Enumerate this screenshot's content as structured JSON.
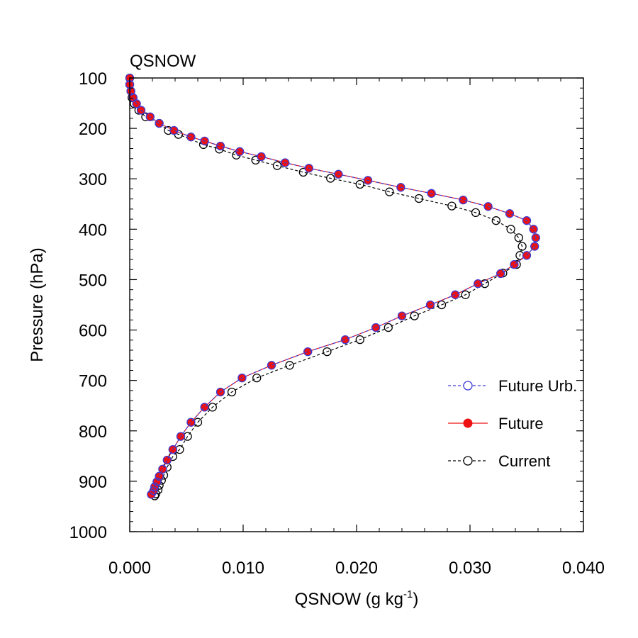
{
  "chart_data": {
    "type": "line",
    "title": "QSNOW",
    "xlabel": "QSNOW (g kg",
    "xlabel_sup": "-1",
    "xlabel_end": ")",
    "ylabel": "Pressure (hPa)",
    "xlim": [
      0,
      0.04
    ],
    "ylim": [
      1000,
      100
    ],
    "x_ticks": [
      0,
      0.01,
      0.02,
      0.03,
      0.04
    ],
    "x_tick_labels": [
      "0.000",
      "0.010",
      "0.020",
      "0.030",
      "0.040"
    ],
    "y_ticks": [
      100,
      200,
      300,
      400,
      500,
      600,
      700,
      800,
      900,
      1000
    ],
    "y_tick_labels": [
      "100",
      "200",
      "300",
      "400",
      "500",
      "600",
      "700",
      "800",
      "900",
      "1000"
    ],
    "legend": {
      "position": "right-middle"
    },
    "series": [
      {
        "name": "Future Urb.",
        "color": "#3b3bd6",
        "line": "dashed",
        "marker": "open-circle",
        "points": [
          [
            0.0,
            100
          ],
          [
            0.0,
            113
          ],
          [
            0.0001,
            126
          ],
          [
            0.0003,
            139
          ],
          [
            0.0006,
            151
          ],
          [
            0.001,
            164
          ],
          [
            0.0018,
            177
          ],
          [
            0.0026,
            190
          ],
          [
            0.0039,
            204
          ],
          [
            0.0054,
            217
          ],
          [
            0.0066,
            225
          ],
          [
            0.008,
            235
          ],
          [
            0.0097,
            246
          ],
          [
            0.0116,
            256
          ],
          [
            0.0137,
            268
          ],
          [
            0.0158,
            279
          ],
          [
            0.0184,
            291
          ],
          [
            0.021,
            303
          ],
          [
            0.0239,
            317
          ],
          [
            0.0266,
            329
          ],
          [
            0.0294,
            342
          ],
          [
            0.0316,
            355
          ],
          [
            0.0335,
            369
          ],
          [
            0.035,
            383
          ],
          [
            0.0356,
            400
          ],
          [
            0.0358,
            417
          ],
          [
            0.0357,
            434
          ],
          [
            0.035,
            452
          ],
          [
            0.0339,
            470
          ],
          [
            0.0327,
            488
          ],
          [
            0.0307,
            508
          ],
          [
            0.0287,
            530
          ],
          [
            0.0265,
            550
          ],
          [
            0.024,
            572
          ],
          [
            0.0217,
            595
          ],
          [
            0.019,
            619
          ],
          [
            0.0157,
            643
          ],
          [
            0.0125,
            670
          ],
          [
            0.0099,
            695
          ],
          [
            0.008,
            723
          ],
          [
            0.0066,
            753
          ],
          [
            0.0054,
            783
          ],
          [
            0.0045,
            811
          ],
          [
            0.0038,
            837
          ],
          [
            0.0033,
            858
          ],
          [
            0.0029,
            876
          ],
          [
            0.0026,
            890
          ],
          [
            0.0024,
            901
          ],
          [
            0.0022,
            911
          ],
          [
            0.0021,
            919
          ],
          [
            0.0019,
            926
          ]
        ]
      },
      {
        "name": "Future",
        "color": "#ee1111",
        "line": "solid",
        "marker": "filled-circle",
        "points": [
          [
            0.0,
            100
          ],
          [
            0.0,
            113
          ],
          [
            0.0001,
            126
          ],
          [
            0.0003,
            139
          ],
          [
            0.0006,
            151
          ],
          [
            0.001,
            164
          ],
          [
            0.0018,
            177
          ],
          [
            0.0026,
            190
          ],
          [
            0.0039,
            204
          ],
          [
            0.0054,
            217
          ],
          [
            0.0066,
            225
          ],
          [
            0.008,
            235
          ],
          [
            0.0097,
            246
          ],
          [
            0.0116,
            256
          ],
          [
            0.0137,
            268
          ],
          [
            0.0158,
            279
          ],
          [
            0.0184,
            291
          ],
          [
            0.021,
            303
          ],
          [
            0.0239,
            317
          ],
          [
            0.0266,
            329
          ],
          [
            0.0294,
            342
          ],
          [
            0.0316,
            355
          ],
          [
            0.0335,
            369
          ],
          [
            0.035,
            383
          ],
          [
            0.0356,
            400
          ],
          [
            0.0358,
            417
          ],
          [
            0.0357,
            434
          ],
          [
            0.035,
            452
          ],
          [
            0.0339,
            470
          ],
          [
            0.0327,
            488
          ],
          [
            0.0307,
            508
          ],
          [
            0.0287,
            530
          ],
          [
            0.0265,
            550
          ],
          [
            0.024,
            572
          ],
          [
            0.0217,
            595
          ],
          [
            0.019,
            619
          ],
          [
            0.0157,
            643
          ],
          [
            0.0125,
            670
          ],
          [
            0.0099,
            695
          ],
          [
            0.008,
            723
          ],
          [
            0.0066,
            753
          ],
          [
            0.0054,
            783
          ],
          [
            0.0045,
            811
          ],
          [
            0.0038,
            837
          ],
          [
            0.0033,
            858
          ],
          [
            0.0029,
            876
          ],
          [
            0.0026,
            890
          ],
          [
            0.0024,
            901
          ],
          [
            0.0022,
            911
          ],
          [
            0.0021,
            919
          ],
          [
            0.0019,
            926
          ]
        ]
      },
      {
        "name": "Current",
        "color": "#000000",
        "line": "dashed",
        "marker": "open-circle",
        "points": [
          [
            0.0,
            100
          ],
          [
            0.0,
            113
          ],
          [
            0.0001,
            126
          ],
          [
            0.0002,
            139
          ],
          [
            0.0004,
            151
          ],
          [
            0.0008,
            164
          ],
          [
            0.0014,
            177
          ],
          [
            0.0026,
            190
          ],
          [
            0.0034,
            204
          ],
          [
            0.0043,
            212
          ],
          [
            0.0065,
            232
          ],
          [
            0.0079,
            241
          ],
          [
            0.0094,
            253
          ],
          [
            0.0111,
            263
          ],
          [
            0.013,
            274
          ],
          [
            0.0153,
            287
          ],
          [
            0.0177,
            299
          ],
          [
            0.0203,
            311
          ],
          [
            0.0229,
            326
          ],
          [
            0.0255,
            339
          ],
          [
            0.0284,
            354
          ],
          [
            0.0305,
            367
          ],
          [
            0.0323,
            383
          ],
          [
            0.0336,
            400
          ],
          [
            0.0343,
            417
          ],
          [
            0.0346,
            434
          ],
          [
            0.0344,
            452
          ],
          [
            0.0341,
            470
          ],
          [
            0.0329,
            487
          ],
          [
            0.0313,
            508
          ],
          [
            0.0296,
            530
          ],
          [
            0.0275,
            550
          ],
          [
            0.0251,
            572
          ],
          [
            0.0228,
            595
          ],
          [
            0.0203,
            619
          ],
          [
            0.0174,
            643
          ],
          [
            0.0141,
            670
          ],
          [
            0.0112,
            695
          ],
          [
            0.009,
            723
          ],
          [
            0.0073,
            753
          ],
          [
            0.006,
            783
          ],
          [
            0.0051,
            811
          ],
          [
            0.0044,
            837
          ],
          [
            0.0038,
            851
          ],
          [
            0.0033,
            872
          ],
          [
            0.003,
            888
          ],
          [
            0.0028,
            898
          ],
          [
            0.0026,
            908
          ],
          [
            0.0025,
            917
          ],
          [
            0.0023,
            925
          ],
          [
            0.0022,
            929
          ]
        ]
      }
    ]
  }
}
